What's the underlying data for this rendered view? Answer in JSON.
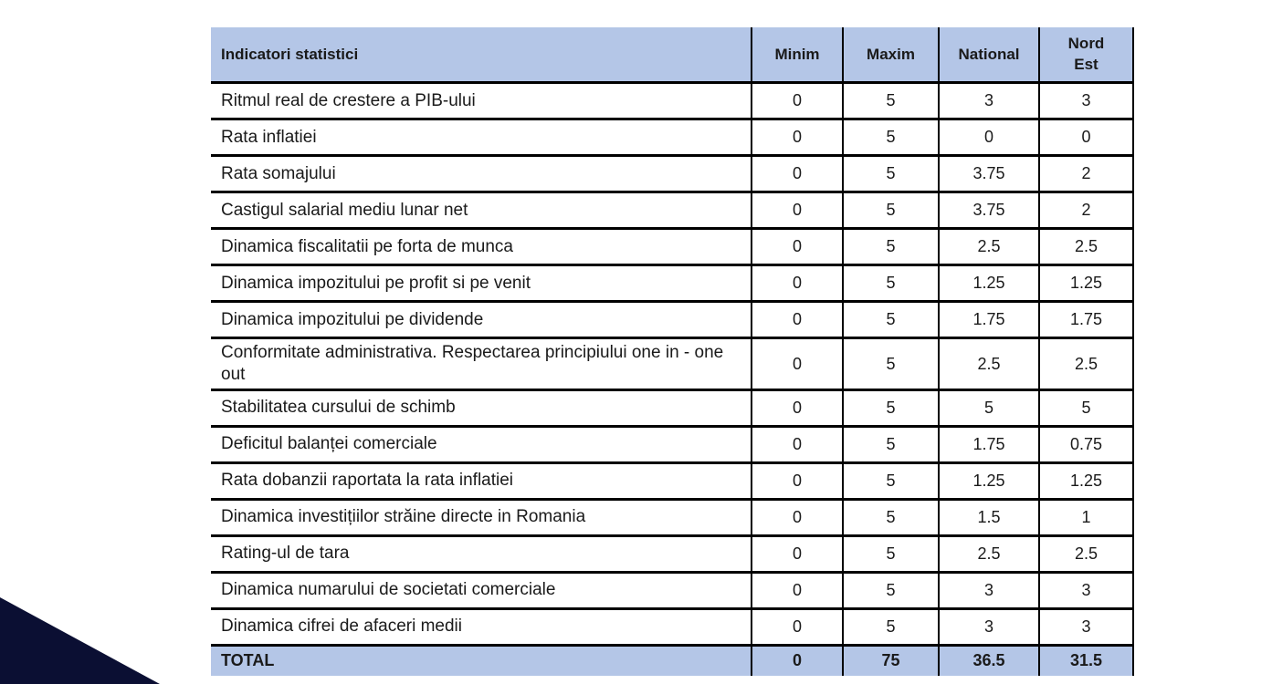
{
  "colors": {
    "header_fill": "#b4c6e7",
    "border": "#000000",
    "text": "#1a1a1a",
    "triangle": "#0b0f33"
  },
  "table": {
    "columns": [
      "Indicatori statistici",
      "Minim",
      "Maxim",
      "National",
      "Nord Est"
    ],
    "rows": [
      {
        "label": "Ritmul real de crestere a PIB-ului",
        "values": [
          "0",
          "5",
          "3",
          "3"
        ]
      },
      {
        "label": "Rata inflatiei",
        "values": [
          "0",
          "5",
          "0",
          "0"
        ]
      },
      {
        "label": "Rata somajului",
        "values": [
          "0",
          "5",
          "3.75",
          "2"
        ]
      },
      {
        "label": "Castigul salarial mediu lunar net",
        "values": [
          "0",
          "5",
          "3.75",
          "2"
        ]
      },
      {
        "label": "Dinamica fiscalitatii pe forta de munca",
        "values": [
          "0",
          "5",
          "2.5",
          "2.5"
        ]
      },
      {
        "label": "Dinamica impozitului pe profit si pe venit",
        "values": [
          "0",
          "5",
          "1.25",
          "1.25"
        ]
      },
      {
        "label": "Dinamica impozitului pe dividende",
        "values": [
          "0",
          "5",
          "1.75",
          "1.75"
        ]
      },
      {
        "label": "Conformitate administrativa. Respectarea principiului one in - one out",
        "values": [
          "0",
          "5",
          "2.5",
          "2.5"
        ]
      },
      {
        "label": "Stabilitatea cursului de schimb",
        "values": [
          "0",
          "5",
          "5",
          "5"
        ]
      },
      {
        "label": "Deficitul balanței comerciale",
        "values": [
          "0",
          "5",
          "1.75",
          "0.75"
        ]
      },
      {
        "label": "Rata dobanzii raportata la rata inflatiei",
        "values": [
          "0",
          "5",
          "1.25",
          "1.25"
        ]
      },
      {
        "label": "Dinamica investițiilor străine directe in Romania",
        "values": [
          "0",
          "5",
          "1.5",
          "1"
        ]
      },
      {
        "label": "Rating-ul de tara",
        "values": [
          "0",
          "5",
          "2.5",
          "2.5"
        ]
      },
      {
        "label": "Dinamica numarului de societati comerciale",
        "values": [
          "0",
          "5",
          "3",
          "3"
        ]
      },
      {
        "label": "Dinamica cifrei de afaceri medii",
        "values": [
          "0",
          "5",
          "3",
          "3"
        ]
      }
    ],
    "total": {
      "label": "TOTAL",
      "values": [
        "0",
        "75",
        "36.5",
        "31.5"
      ]
    }
  }
}
